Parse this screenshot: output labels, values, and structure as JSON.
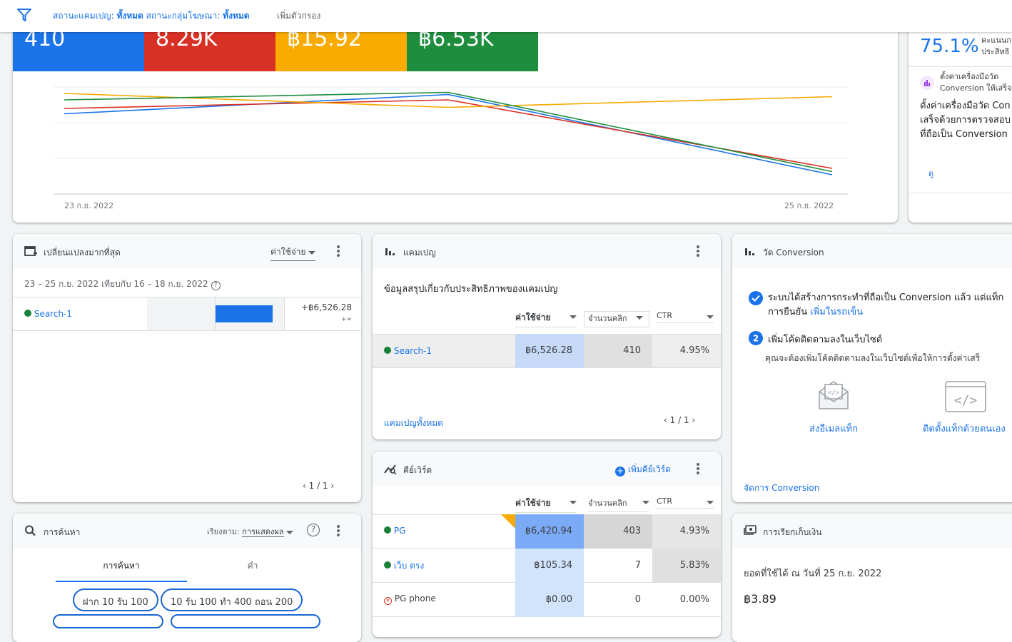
{
  "filterbar": {
    "campaign_status_label": "สถานะแคมเปญ: ",
    "campaign_status_value": "ทั้งหมด",
    "adgroup_status_label": " สถานะกลุ่มโฆษณา: ",
    "adgroup_status_value": "ทั้งหมด",
    "add_filter": "เพิ่มตัวกรอง"
  },
  "metrics": [
    {
      "value": "410",
      "color": "#1a73e8"
    },
    {
      "value": "8.29K",
      "color": "#d93025"
    },
    {
      "value": "฿15.92",
      "color": "#f9ab00"
    },
    {
      "value": "฿6.53K",
      "color": "#1e8e3e"
    }
  ],
  "chart_data": {
    "type": "line",
    "x": [
      "23 ก.ย. 2022",
      "24 ก.ย. 2022",
      "25 ก.ย. 2022"
    ],
    "x_tick_labels": [
      "23 ก.ย. 2022",
      "25 ก.ย. 2022"
    ],
    "grid": true,
    "series": [
      {
        "color": "#1a73e8",
        "values": [
          0.75,
          0.93,
          0.18
        ]
      },
      {
        "color": "#d93025",
        "values": [
          0.8,
          0.88,
          0.24
        ]
      },
      {
        "color": "#f9ab00",
        "values": [
          0.94,
          0.81,
          0.91
        ]
      },
      {
        "color": "#1e8e3e",
        "values": [
          0.88,
          0.95,
          0.21
        ]
      }
    ]
  },
  "optscore": {
    "value": "75.1%",
    "label_line1": "คะแนนก",
    "label_line2": "ประสิทธิ",
    "rec_title_line1": "ตั้งค่าเครื่องมือวัด",
    "rec_title_line2": "Conversion ให้เสร็จ",
    "rec_body_line1": "ตั้งค่าเครื่องมือวัด Con",
    "rec_body_line2": "เสร็จด้วยการตรวจสอบ",
    "rec_body_line3": "ที่ถือเป็น Conversion",
    "view": "ดู"
  },
  "changes": {
    "title": "เปลี่ยนแปลงมากที่สุด",
    "metric_select": "ค่าใช้จ่าย",
    "date_range": "23 – 25 ก.ย. 2022 เทียบกับ 16 – 18 ก.ย. 2022",
    "row_name": "Search-1",
    "row_value": "+฿6,526.28",
    "row_delta": "+∞",
    "row_fraction": 1,
    "pager": "1 / 1"
  },
  "campaigns": {
    "title": "แคมเปญ",
    "summary": "ข้อมูลสรุปเกี่ยวกับประสิทธิภาพของแคมเปญ",
    "col_cost": "ค่าใช้จ่าย",
    "col_clicks": "จำนวนคลิก",
    "col_ctr": "CTR",
    "row": {
      "name": "Search-1",
      "cost": "฿6,526.28",
      "clicks": "410",
      "ctr": "4.95%"
    },
    "all_link": "แคมเปญทั้งหมด",
    "pager": "1 / 1"
  },
  "conversion": {
    "title": "วัด Conversion",
    "step1_line1": "ระบบได้สร้างการกระทำที่ถือเป็น Conversion แล้ว แต่แท็ก",
    "step1_line2": "การยืนยัน ",
    "step1_link": "เพิ่มในรถเข็น",
    "step2_num": "2",
    "step2_title": "เพิ่มโค้ดติดตามลงในเว็บไซต์",
    "step2_desc": "คุณจะต้องเพิ่มโค้ดติดตามลงในเว็บไซต์เพื่อให้การตั้งค่าเสร็",
    "email_tag": "ส่งอีเมลแท็ก",
    "install_tag": "ติดตั้งแท็กด้วยตนเอง",
    "manage": "จัดการ Conversion"
  },
  "keywords": {
    "title": "คีย์เวิร์ด",
    "add": "เพิ่มคีย์เวิร์ด",
    "col_cost": "ค่าใช้จ่าย",
    "col_clicks": "จำนวนคลิก",
    "col_ctr": "CTR",
    "rows": [
      {
        "name": "PG",
        "cost": "฿6,420.94",
        "clicks": "403",
        "ctr": "4.93%"
      },
      {
        "name": "เว็บ ตรง",
        "cost": "฿105.34",
        "clicks": "7",
        "ctr": "5.83%"
      },
      {
        "name": "PG phone",
        "cost": "฿0.00",
        "clicks": "0",
        "ctr": "0.00%"
      }
    ]
  },
  "search": {
    "title": "การค้นหา",
    "sort_label": "เรียงตาม: ",
    "sort_value": "การแสดงผล",
    "tab_search": "การค้นหา",
    "tab_words": "คำ",
    "chips": [
      "ฝาก 10 รับ 100",
      "10 รับ 100 ทำ 400 ถอน 200"
    ]
  },
  "billing": {
    "title": "การเรียกเก็บเงิน",
    "available": "ยอดที่ใช้ได้ ณ วันที่ 25 ก.ย. 2022",
    "amount": "฿3.89"
  }
}
